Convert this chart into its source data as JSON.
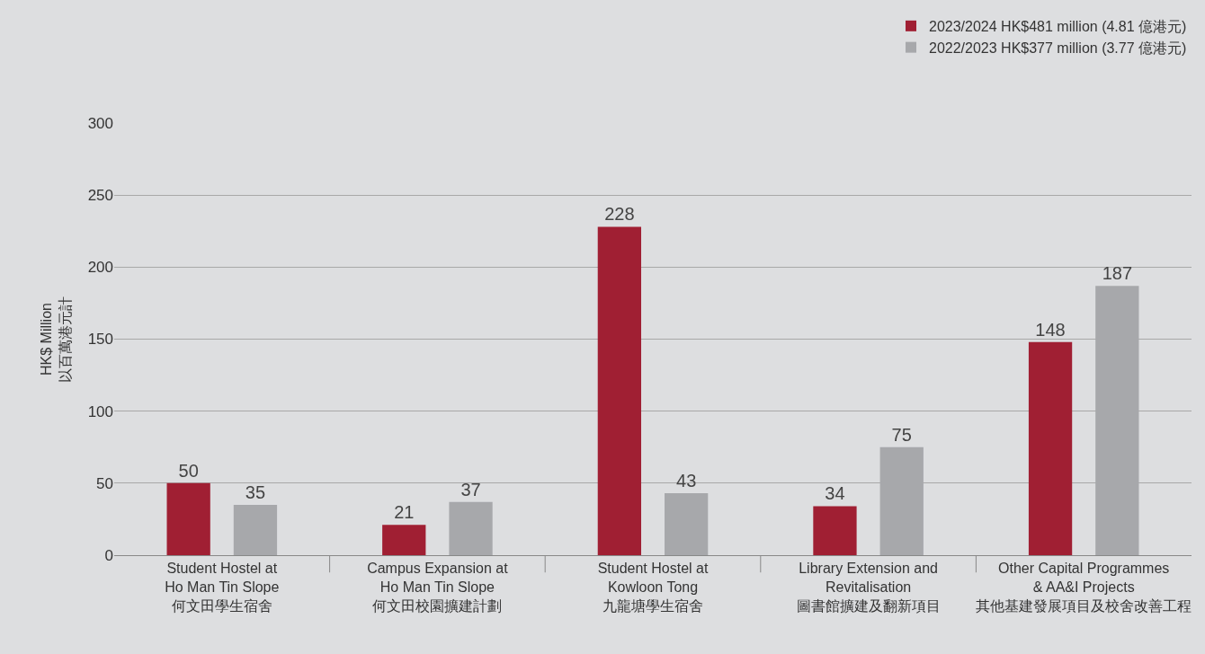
{
  "chart_data": {
    "type": "bar",
    "ylabel": "HK$ Million\n以百萬港元計",
    "categories": [
      "Student Hostel at\nHo Man Tin Slope\n何文田學生宿舍",
      "Campus Expansion at\nHo Man Tin Slope\n何文田校園擴建計劃",
      "Student Hostel at\nKowloon Tong\n九龍塘學生宿舍",
      "Library Extension and\nRevitalisation\n圖書館擴建及翻新項目",
      "Other Capital Programmes\n& AA&I Projects\n其他基建發展項目及校舍改善工程"
    ],
    "series": [
      {
        "name": "2023/2024 HK$481 million (4.81 億港元)",
        "color": "#a01f33",
        "values": [
          50,
          21,
          228,
          34,
          148
        ]
      },
      {
        "name": "2022/2023 HK$377 million (3.77 億港元)",
        "color": "#a7a8ab",
        "values": [
          35,
          37,
          43,
          75,
          187
        ]
      }
    ],
    "ylim": [
      0,
      300
    ],
    "yticks": [
      0,
      50,
      100,
      150,
      200,
      250,
      300
    ],
    "grid": "y",
    "legend": "top right",
    "data_labels": true
  }
}
